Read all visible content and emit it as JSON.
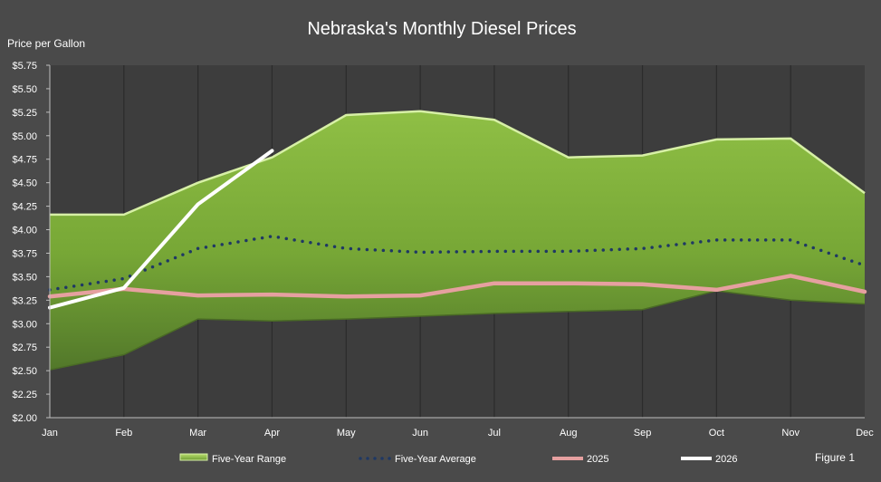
{
  "chart_data": {
    "type": "area",
    "title": "Nebraska's Monthly Diesel Prices",
    "ylabel": "Price per Gallon",
    "xlabel": "",
    "figure_label": "Figure 1",
    "categories": [
      "Jan",
      "Feb",
      "Mar",
      "Apr",
      "May",
      "Jun",
      "Jul",
      "Aug",
      "Sep",
      "Oct",
      "Nov",
      "Dec"
    ],
    "ylim": [
      2.0,
      5.75
    ],
    "y_ticks": [
      "$2.00",
      "$2.25",
      "$2.50",
      "$2.75",
      "$3.00",
      "$3.25",
      "$3.50",
      "$3.75",
      "$4.00",
      "$4.25",
      "$4.50",
      "$4.75",
      "$5.00",
      "$5.25",
      "$5.50",
      "$5.75"
    ],
    "grid": "vertical",
    "legend_position": "bottom",
    "range": {
      "name": "Five-Year Range",
      "color": "#7fae3a",
      "upper": [
        4.16,
        4.16,
        4.5,
        4.77,
        5.22,
        5.26,
        5.17,
        4.77,
        4.79,
        4.96,
        4.97,
        4.39
      ],
      "lower": [
        2.51,
        2.67,
        3.05,
        3.03,
        3.05,
        3.08,
        3.11,
        3.13,
        3.15,
        3.35,
        3.25,
        3.21
      ]
    },
    "series": [
      {
        "name": "Five-Year Average",
        "color": "#1f3864",
        "style": "dotted",
        "values": [
          3.36,
          3.48,
          3.8,
          3.93,
          3.8,
          3.76,
          3.77,
          3.77,
          3.8,
          3.89,
          3.89,
          3.62
        ]
      },
      {
        "name": "2025",
        "color": "#e6a0a0",
        "style": "solid",
        "values": [
          3.29,
          3.37,
          3.3,
          3.31,
          3.29,
          3.3,
          3.43,
          3.43,
          3.42,
          3.36,
          3.51,
          3.34
        ]
      },
      {
        "name": "2026",
        "color": "#ffffff",
        "style": "solid",
        "values": [
          3.17,
          3.38,
          4.27,
          4.84,
          null,
          null,
          null,
          null,
          null,
          null,
          null,
          null
        ]
      }
    ],
    "colors": {
      "background": "#4a4a4a",
      "plot_area": "#3d3d3d",
      "gridline": "#2b2b2b",
      "range_upper_edge": "#d7f0a6"
    }
  }
}
